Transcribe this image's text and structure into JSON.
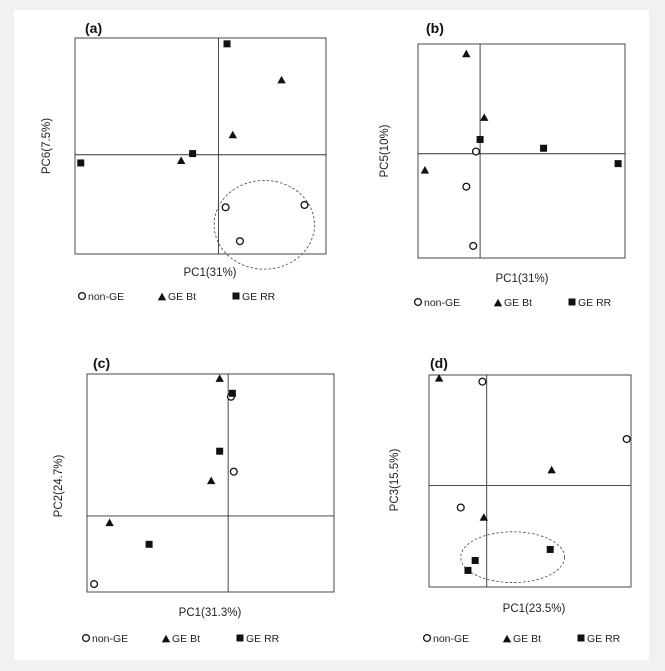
{
  "legend": {
    "nonge": "non-GE",
    "bt": "GE Bt",
    "rr": "GE RR"
  },
  "colors": {
    "ink": "#111111",
    "frame": "#333333"
  },
  "chart_data": [
    {
      "type": "scatter",
      "panel": "(a)",
      "xlabel": "PC1(31%)",
      "ylabel": "PC6(7.5%)",
      "xlim": [
        -1.0,
        0.75
      ],
      "ylim": [
        -0.85,
        1.0
      ],
      "grid": false,
      "legend_placement": "bottom",
      "series": [
        {
          "kind": "nonge",
          "label": "non-GE",
          "points": [
            [
              0.05,
              -0.45
            ],
            [
              0.6,
              -0.43
            ],
            [
              0.15,
              -0.74
            ]
          ]
        },
        {
          "kind": "bt",
          "label": "GE Bt",
          "points": [
            [
              0.44,
              0.64
            ],
            [
              0.1,
              0.17
            ],
            [
              -0.26,
              -0.05
            ]
          ]
        },
        {
          "kind": "rr",
          "label": "GE RR",
          "points": [
            [
              0.06,
              0.95
            ],
            [
              -0.18,
              0.01
            ],
            [
              -0.96,
              -0.07
            ]
          ]
        }
      ],
      "annotations": [
        {
          "type": "dashed-ellipse",
          "cx": 0.32,
          "cy": -0.6,
          "rx": 0.35,
          "ry": 0.38
        }
      ]
    },
    {
      "type": "scatter",
      "panel": "(b)",
      "xlabel": "PC1(31%)",
      "ylabel": "PC5(10%)",
      "xlim": [
        -0.45,
        1.05
      ],
      "ylim": [
        -0.95,
        1.0
      ],
      "grid": false,
      "legend_placement": "bottom",
      "series": [
        {
          "kind": "nonge",
          "label": "non-GE",
          "points": [
            [
              -0.03,
              0.02
            ],
            [
              -0.1,
              -0.3
            ],
            [
              -0.05,
              -0.84
            ]
          ]
        },
        {
          "kind": "bt",
          "label": "GE Bt",
          "points": [
            [
              -0.1,
              0.91
            ],
            [
              0.03,
              0.33
            ],
            [
              -0.4,
              -0.15
            ]
          ]
        },
        {
          "kind": "rr",
          "label": "GE RR",
          "points": [
            [
              0.0,
              0.13
            ],
            [
              0.46,
              0.05
            ],
            [
              1.0,
              -0.09
            ]
          ]
        }
      ]
    },
    {
      "type": "scatter",
      "panel": "(c)",
      "xlabel": "PC1(31.3%)",
      "ylabel": "PC2(24.7%)",
      "xlim": [
        -1.0,
        0.75
      ],
      "ylim": [
        -0.67,
        1.25
      ],
      "grid": false,
      "legend_placement": "bottom",
      "series": [
        {
          "kind": "nonge",
          "label": "non-GE",
          "points": [
            [
              0.02,
              1.05
            ],
            [
              0.04,
              0.39
            ],
            [
              -0.95,
              -0.6
            ]
          ]
        },
        {
          "kind": "bt",
          "label": "GE Bt",
          "points": [
            [
              -0.06,
              1.21
            ],
            [
              -0.12,
              0.31
            ],
            [
              -0.84,
              -0.06
            ]
          ]
        },
        {
          "kind": "rr",
          "label": "GE RR",
          "points": [
            [
              0.03,
              1.08
            ],
            [
              -0.06,
              0.57
            ],
            [
              -0.56,
              -0.25
            ]
          ]
        }
      ]
    },
    {
      "type": "scatter",
      "panel": "(d)",
      "xlabel": "PC1(23.5%)",
      "ylabel": "PC3(15.5%)",
      "xlim": [
        -0.4,
        1.0
      ],
      "ylim": [
        -0.92,
        1.0
      ],
      "grid": false,
      "legend_placement": "bottom",
      "series": [
        {
          "kind": "nonge",
          "label": "non-GE",
          "points": [
            [
              -0.03,
              0.94
            ],
            [
              0.97,
              0.42
            ],
            [
              -0.18,
              -0.2
            ]
          ]
        },
        {
          "kind": "bt",
          "label": "GE Bt",
          "points": [
            [
              -0.33,
              0.97
            ],
            [
              0.45,
              0.14
            ],
            [
              -0.02,
              -0.29
            ]
          ]
        },
        {
          "kind": "rr",
          "label": "GE RR",
          "points": [
            [
              0.44,
              -0.58
            ],
            [
              -0.08,
              -0.68
            ],
            [
              -0.13,
              -0.77
            ]
          ]
        }
      ],
      "annotations": [
        {
          "type": "dashed-ellipse",
          "cx": 0.18,
          "cy": -0.65,
          "rx": 0.36,
          "ry": 0.23
        }
      ]
    }
  ]
}
